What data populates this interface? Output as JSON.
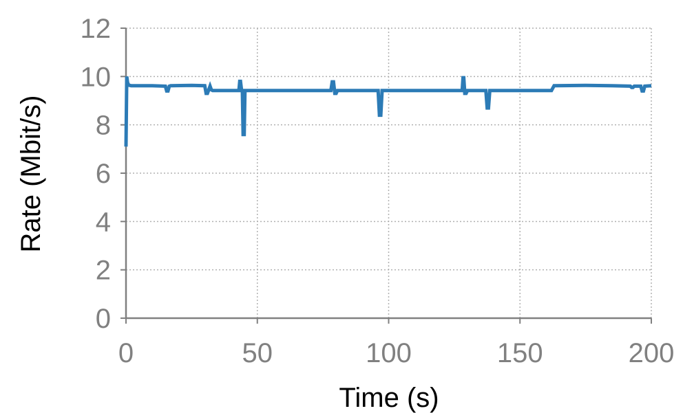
{
  "chart_data": {
    "type": "line",
    "title": "",
    "xlabel": "Time (s)",
    "ylabel": "Rate (Mbit/s)",
    "xlim": [
      0,
      200
    ],
    "ylim": [
      0,
      12
    ],
    "xticks": [
      "0",
      "50",
      "100",
      "150",
      "200"
    ],
    "yticks": [
      "0",
      "2",
      "4",
      "6",
      "8",
      "10",
      "12"
    ],
    "grid": true,
    "legend": "none",
    "colors": {
      "series": "#2c7bb6",
      "grid": "#b0b0b0",
      "axis": "#808080",
      "tick_label": "#808080"
    },
    "series": [
      {
        "x": [
          0,
          0.3,
          0.6,
          1,
          1.5,
          2,
          10,
          15,
          15.5,
          16,
          16.5,
          17,
          25,
          30,
          30.5,
          31,
          31.5,
          32,
          32.5,
          33,
          40,
          43,
          43.3,
          43.6,
          44,
          44.3,
          44.6,
          45,
          45.3,
          45.6,
          46,
          60,
          78,
          78.5,
          79,
          79.5,
          80,
          80.5,
          81,
          96,
          96.5,
          97,
          97.5,
          98,
          115,
          128,
          128.3,
          128.6,
          129,
          129.5,
          130,
          130.5,
          131,
          137,
          137.5,
          138,
          138.5,
          139,
          150,
          162,
          163,
          175,
          185,
          192,
          192.5,
          193,
          193.5,
          196,
          196.5,
          197,
          197.5,
          200
        ],
        "values": [
          7.1,
          10.0,
          9.75,
          9.65,
          9.63,
          9.62,
          9.62,
          9.6,
          9.4,
          9.4,
          9.6,
          9.62,
          9.63,
          9.62,
          9.3,
          9.3,
          9.45,
          9.6,
          9.45,
          9.42,
          9.42,
          9.42,
          9.8,
          9.8,
          9.42,
          9.42,
          7.6,
          7.6,
          9.42,
          9.42,
          9.42,
          9.42,
          9.42,
          9.78,
          9.78,
          9.3,
          9.3,
          9.42,
          9.42,
          9.42,
          8.4,
          8.4,
          9.42,
          9.42,
          9.42,
          9.42,
          9.95,
          9.95,
          9.3,
          9.3,
          9.42,
          9.42,
          9.42,
          9.42,
          8.7,
          8.7,
          9.42,
          9.42,
          9.42,
          9.42,
          9.62,
          9.63,
          9.62,
          9.6,
          9.55,
          9.55,
          9.6,
          9.6,
          9.4,
          9.4,
          9.6,
          9.62
        ]
      }
    ]
  }
}
